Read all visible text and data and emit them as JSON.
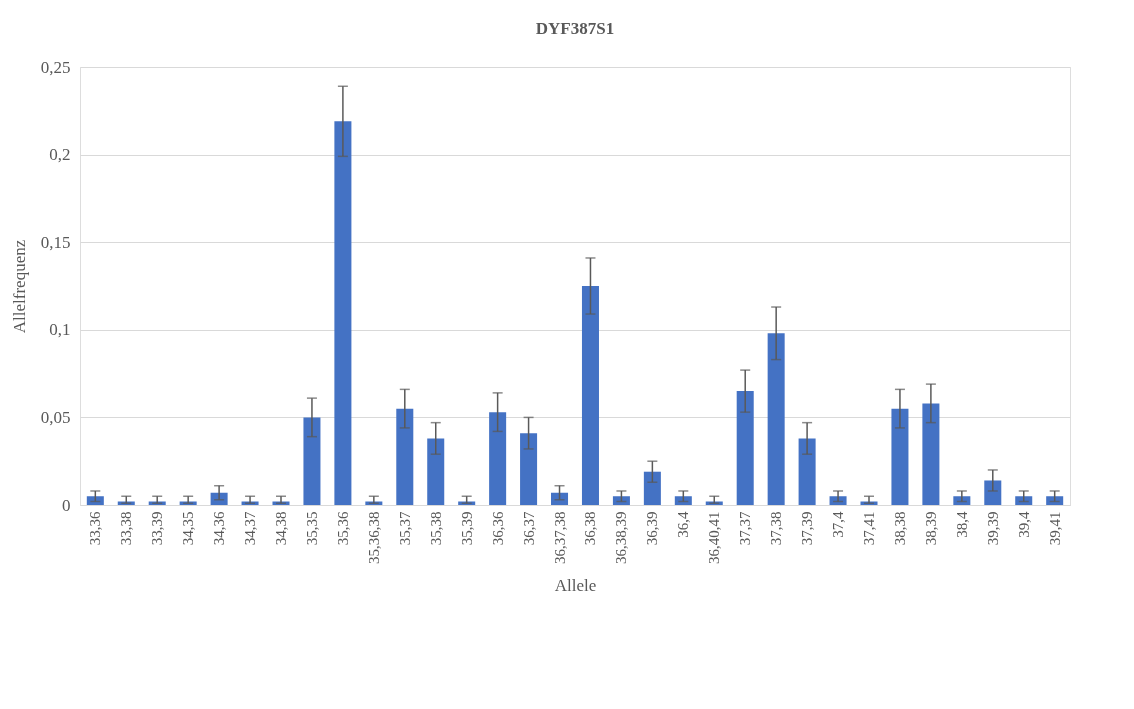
{
  "chart_data": {
    "type": "bar",
    "title": "DYF387S1",
    "xlabel": "Allele",
    "ylabel": "Allelfrequenz",
    "categories": [
      "33,36",
      "33,38",
      "33,39",
      "34,35",
      "34,36",
      "34,37",
      "34,38",
      "35,35",
      "35,36",
      "35,36,38",
      "35,37",
      "35,38",
      "35,39",
      "36,36",
      "36,37",
      "36,37,38",
      "36,38",
      "36,38,39",
      "36,39",
      "36,4",
      "36,40,41",
      "37,37",
      "37,38",
      "37,39",
      "37,4",
      "37,41",
      "38,38",
      "38,39",
      "38,4",
      "39,39",
      "39,4",
      "39,41"
    ],
    "values": [
      0.005,
      0.002,
      0.002,
      0.002,
      0.007,
      0.002,
      0.002,
      0.05,
      0.219,
      0.002,
      0.055,
      0.038,
      0.002,
      0.053,
      0.041,
      0.007,
      0.125,
      0.005,
      0.019,
      0.005,
      0.002,
      0.065,
      0.098,
      0.038,
      0.005,
      0.002,
      0.055,
      0.058,
      0.005,
      0.014,
      0.005,
      0.005
    ],
    "errors": [
      0.003,
      [
        0.001,
        0.005
      ],
      [
        0.001,
        0.005
      ],
      [
        0.001,
        0.005
      ],
      0.004,
      [
        0.001,
        0.005
      ],
      [
        0.001,
        0.005
      ],
      0.011,
      0.02,
      [
        0.001,
        0.005
      ],
      0.011,
      0.009,
      [
        0.001,
        0.005
      ],
      0.011,
      0.009,
      0.004,
      0.016,
      0.003,
      0.006,
      0.003,
      [
        0.001,
        0.005
      ],
      0.012,
      0.015,
      0.009,
      0.003,
      [
        0.001,
        0.005
      ],
      0.011,
      0.011,
      0.003,
      0.006,
      0.003,
      0.003
    ],
    "color": "#4472c4",
    "ylim": [
      0,
      0.25
    ],
    "yticks": [
      0,
      {
        "value": 0.05,
        "label": "0,05"
      },
      {
        "value": 0.1,
        "label": "0,1"
      },
      {
        "value": 0.15,
        "label": "0,15"
      },
      {
        "value": 0.2,
        "label": "0,2"
      },
      {
        "value": 0.25,
        "label": "0,25"
      }
    ],
    "grid": "y"
  }
}
